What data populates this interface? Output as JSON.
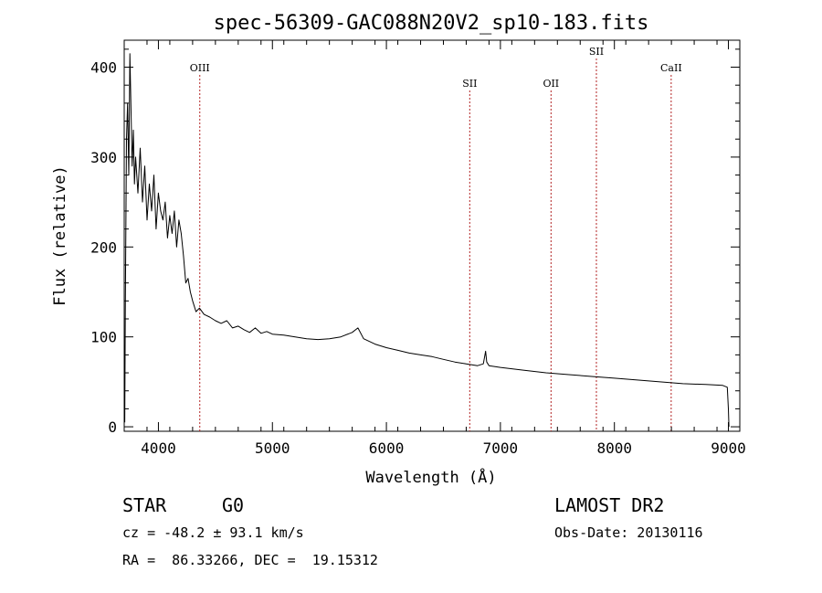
{
  "chart_data": {
    "type": "line",
    "title": "spec-56309-GAC088N20V2_sp10-183.fits",
    "xlabel": "Wavelength (Å)",
    "ylabel": "Flux (relative)",
    "xlim": [
      3700,
      9100
    ],
    "ylim": [
      -5,
      430
    ],
    "xticks": [
      4000,
      5000,
      6000,
      7000,
      8000,
      9000
    ],
    "yticks": [
      0,
      100,
      200,
      300,
      400
    ],
    "grid": false,
    "line_color": "#000000",
    "marker_color": "#b22222",
    "lines": [
      {
        "label": "OIII",
        "x": 4363
      },
      {
        "label": "SII",
        "x": 6731
      },
      {
        "label": "OII",
        "x": 7444
      },
      {
        "label": "SII",
        "x": 7842
      },
      {
        "label": "CaII",
        "x": 8498
      }
    ],
    "series": [
      {
        "x": [
          3705,
          3710,
          3720,
          3730,
          3740,
          3750,
          3760,
          3770,
          3780,
          3790,
          3800,
          3820,
          3840,
          3860,
          3880,
          3900,
          3920,
          3940,
          3960,
          3980,
          4000,
          4020,
          4040,
          4060,
          4080,
          4100,
          4120,
          4140,
          4160,
          4180,
          4200,
          4220,
          4240,
          4260,
          4280,
          4300,
          4330,
          4360,
          4400,
          4450,
          4500,
          4550,
          4600,
          4650,
          4700,
          4750,
          4800,
          4850,
          4900,
          4950,
          5000,
          5100,
          5200,
          5300,
          5400,
          5500,
          5600,
          5700,
          5750,
          5800,
          5900,
          6000,
          6100,
          6200,
          6300,
          6400,
          6500,
          6600,
          6700,
          6800,
          6850,
          6870,
          6880,
          6900,
          7000,
          7200,
          7400,
          7600,
          7800,
          8000,
          8200,
          8400,
          8600,
          8800,
          8950,
          8990,
          9000,
          9005
        ],
        "y": [
          5,
          130,
          320,
          360,
          280,
          415,
          350,
          290,
          330,
          270,
          300,
          260,
          310,
          250,
          290,
          230,
          270,
          240,
          280,
          220,
          260,
          240,
          230,
          250,
          210,
          235,
          215,
          240,
          200,
          230,
          215,
          190,
          160,
          165,
          150,
          140,
          128,
          132,
          125,
          122,
          118,
          115,
          118,
          110,
          112,
          108,
          105,
          110,
          104,
          106,
          103,
          102,
          100,
          98,
          97,
          98,
          100,
          105,
          110,
          98,
          92,
          88,
          85,
          82,
          80,
          78,
          75,
          72,
          70,
          68,
          70,
          84,
          72,
          68,
          66,
          63,
          60,
          58,
          56,
          54,
          52,
          50,
          48,
          47,
          46,
          44,
          20,
          0
        ]
      }
    ]
  },
  "footer": {
    "object_class": "STAR",
    "subclass": "G0",
    "velocity": "cz = -48.2 ± 93.1 km/s",
    "coords": "RA =  86.33266, DEC =  19.15312",
    "survey": "LAMOST DR2",
    "obs_date": "Obs-Date: 20130116"
  }
}
